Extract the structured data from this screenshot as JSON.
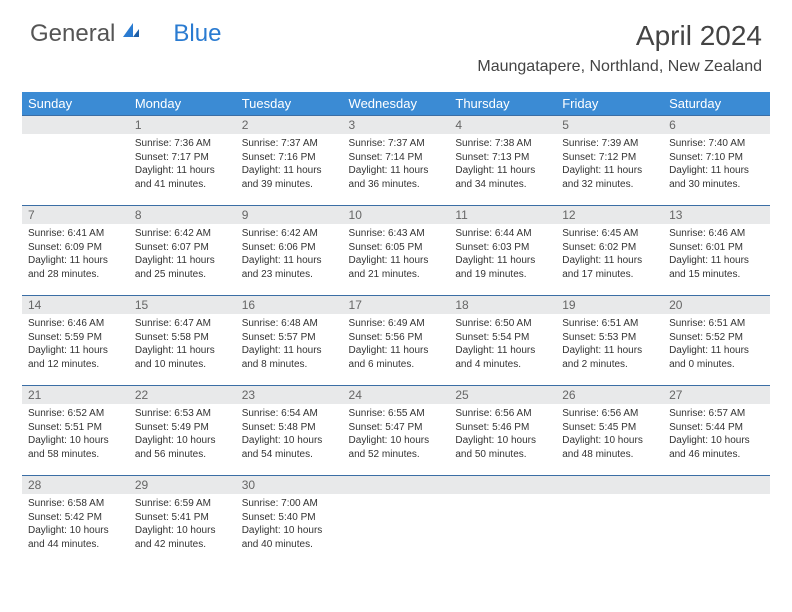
{
  "logo": {
    "text_general": "General",
    "text_blue": "Blue"
  },
  "title": "April 2024",
  "location": "Maungatapere, Northland, New Zealand",
  "colors": {
    "header_bg": "#3b8bd4",
    "header_text": "#ffffff",
    "day_head_bg": "#e8e9ea",
    "day_head_border": "#3b6ea5",
    "body_text": "#333333",
    "logo_blue": "#2a7bd1"
  },
  "weekdays": [
    "Sunday",
    "Monday",
    "Tuesday",
    "Wednesday",
    "Thursday",
    "Friday",
    "Saturday"
  ],
  "first_weekday_index": 1,
  "days": [
    {
      "n": "1",
      "sunrise": "7:36 AM",
      "sunset": "7:17 PM",
      "daylight": "11 hours and 41 minutes."
    },
    {
      "n": "2",
      "sunrise": "7:37 AM",
      "sunset": "7:16 PM",
      "daylight": "11 hours and 39 minutes."
    },
    {
      "n": "3",
      "sunrise": "7:37 AM",
      "sunset": "7:14 PM",
      "daylight": "11 hours and 36 minutes."
    },
    {
      "n": "4",
      "sunrise": "7:38 AM",
      "sunset": "7:13 PM",
      "daylight": "11 hours and 34 minutes."
    },
    {
      "n": "5",
      "sunrise": "7:39 AM",
      "sunset": "7:12 PM",
      "daylight": "11 hours and 32 minutes."
    },
    {
      "n": "6",
      "sunrise": "7:40 AM",
      "sunset": "7:10 PM",
      "daylight": "11 hours and 30 minutes."
    },
    {
      "n": "7",
      "sunrise": "6:41 AM",
      "sunset": "6:09 PM",
      "daylight": "11 hours and 28 minutes."
    },
    {
      "n": "8",
      "sunrise": "6:42 AM",
      "sunset": "6:07 PM",
      "daylight": "11 hours and 25 minutes."
    },
    {
      "n": "9",
      "sunrise": "6:42 AM",
      "sunset": "6:06 PM",
      "daylight": "11 hours and 23 minutes."
    },
    {
      "n": "10",
      "sunrise": "6:43 AM",
      "sunset": "6:05 PM",
      "daylight": "11 hours and 21 minutes."
    },
    {
      "n": "11",
      "sunrise": "6:44 AM",
      "sunset": "6:03 PM",
      "daylight": "11 hours and 19 minutes."
    },
    {
      "n": "12",
      "sunrise": "6:45 AM",
      "sunset": "6:02 PM",
      "daylight": "11 hours and 17 minutes."
    },
    {
      "n": "13",
      "sunrise": "6:46 AM",
      "sunset": "6:01 PM",
      "daylight": "11 hours and 15 minutes."
    },
    {
      "n": "14",
      "sunrise": "6:46 AM",
      "sunset": "5:59 PM",
      "daylight": "11 hours and 12 minutes."
    },
    {
      "n": "15",
      "sunrise": "6:47 AM",
      "sunset": "5:58 PM",
      "daylight": "11 hours and 10 minutes."
    },
    {
      "n": "16",
      "sunrise": "6:48 AM",
      "sunset": "5:57 PM",
      "daylight": "11 hours and 8 minutes."
    },
    {
      "n": "17",
      "sunrise": "6:49 AM",
      "sunset": "5:56 PM",
      "daylight": "11 hours and 6 minutes."
    },
    {
      "n": "18",
      "sunrise": "6:50 AM",
      "sunset": "5:54 PM",
      "daylight": "11 hours and 4 minutes."
    },
    {
      "n": "19",
      "sunrise": "6:51 AM",
      "sunset": "5:53 PM",
      "daylight": "11 hours and 2 minutes."
    },
    {
      "n": "20",
      "sunrise": "6:51 AM",
      "sunset": "5:52 PM",
      "daylight": "11 hours and 0 minutes."
    },
    {
      "n": "21",
      "sunrise": "6:52 AM",
      "sunset": "5:51 PM",
      "daylight": "10 hours and 58 minutes."
    },
    {
      "n": "22",
      "sunrise": "6:53 AM",
      "sunset": "5:49 PM",
      "daylight": "10 hours and 56 minutes."
    },
    {
      "n": "23",
      "sunrise": "6:54 AM",
      "sunset": "5:48 PM",
      "daylight": "10 hours and 54 minutes."
    },
    {
      "n": "24",
      "sunrise": "6:55 AM",
      "sunset": "5:47 PM",
      "daylight": "10 hours and 52 minutes."
    },
    {
      "n": "25",
      "sunrise": "6:56 AM",
      "sunset": "5:46 PM",
      "daylight": "10 hours and 50 minutes."
    },
    {
      "n": "26",
      "sunrise": "6:56 AM",
      "sunset": "5:45 PM",
      "daylight": "10 hours and 48 minutes."
    },
    {
      "n": "27",
      "sunrise": "6:57 AM",
      "sunset": "5:44 PM",
      "daylight": "10 hours and 46 minutes."
    },
    {
      "n": "28",
      "sunrise": "6:58 AM",
      "sunset": "5:42 PM",
      "daylight": "10 hours and 44 minutes."
    },
    {
      "n": "29",
      "sunrise": "6:59 AM",
      "sunset": "5:41 PM",
      "daylight": "10 hours and 42 minutes."
    },
    {
      "n": "30",
      "sunrise": "7:00 AM",
      "sunset": "5:40 PM",
      "daylight": "10 hours and 40 minutes."
    }
  ],
  "labels": {
    "sunrise": "Sunrise:",
    "sunset": "Sunset:",
    "daylight": "Daylight:"
  }
}
